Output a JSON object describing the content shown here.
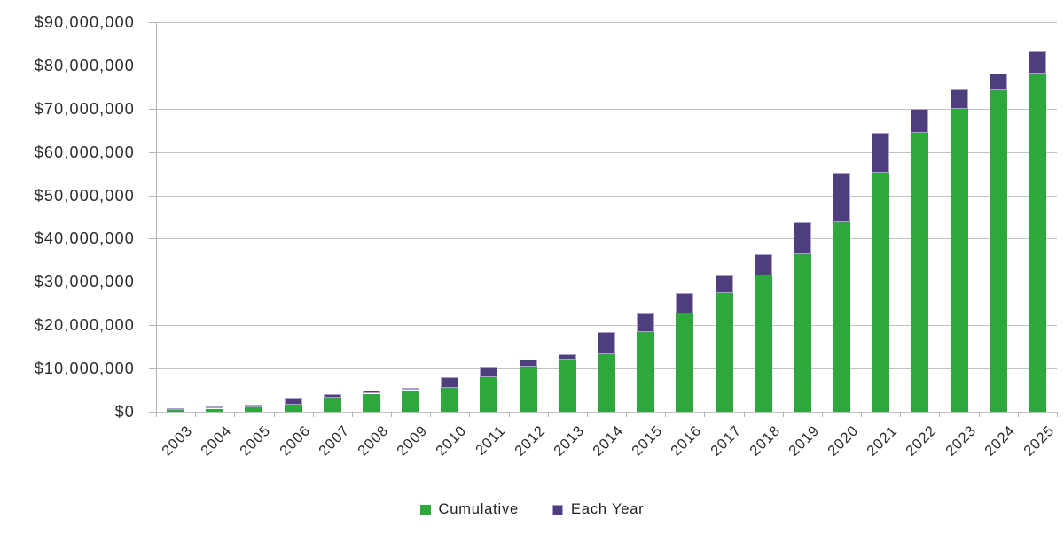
{
  "chart_data": {
    "type": "bar",
    "stacked": true,
    "title": "",
    "xlabel": "",
    "ylabel": "",
    "categories": [
      "2003",
      "2004",
      "2005",
      "2006",
      "2007",
      "2008",
      "2009",
      "2010",
      "2011",
      "2012",
      "2013",
      "2014",
      "2015",
      "2016",
      "2017",
      "2018",
      "2019",
      "2020",
      "2021",
      "2022",
      "2023",
      "2024",
      "2025"
    ],
    "series": [
      {
        "name": "Cumulative",
        "color": "#2ea83c",
        "values": [
          350000,
          700000,
          1100000,
          1600000,
          3300000,
          4200000,
          5000000,
          5600000,
          8000000,
          10500000,
          12100000,
          13300000,
          18400000,
          22800000,
          27500000,
          31500000,
          36500000,
          43800000,
          55300000,
          64400000,
          70000000,
          74300000,
          78200000
        ]
      },
      {
        "name": "Each Year",
        "color": "#4f3e7e",
        "border_color": "#ac9fcc",
        "values": [
          400000,
          500000,
          500000,
          1700000,
          900000,
          800000,
          600000,
          2400000,
          2500000,
          1600000,
          1200000,
          5100000,
          4400000,
          4700000,
          4000000,
          5000000,
          7300000,
          11500000,
          9100000,
          5600000,
          4500000,
          3900000,
          5000000
        ]
      }
    ],
    "ylim": [
      0,
      90000000
    ],
    "y_ticks": [
      {
        "value": 0,
        "label": "$0"
      },
      {
        "value": 10000000,
        "label": "$10,000,000"
      },
      {
        "value": 20000000,
        "label": "$20,000,000"
      },
      {
        "value": 30000000,
        "label": "$30,000,000"
      },
      {
        "value": 40000000,
        "label": "$40,000,000"
      },
      {
        "value": 50000000,
        "label": "$50,000,000"
      },
      {
        "value": 60000000,
        "label": "$60,000,000"
      },
      {
        "value": 70000000,
        "label": "$70,000,000"
      },
      {
        "value": 80000000,
        "label": "$80,000,000"
      },
      {
        "value": 90000000,
        "label": "$90,000,000"
      }
    ],
    "grid": true,
    "legend_position": "bottom"
  },
  "colors": {
    "gridline": "#c3c3c3",
    "axis": "#b3b3b3",
    "text": "#2b2b2b"
  }
}
